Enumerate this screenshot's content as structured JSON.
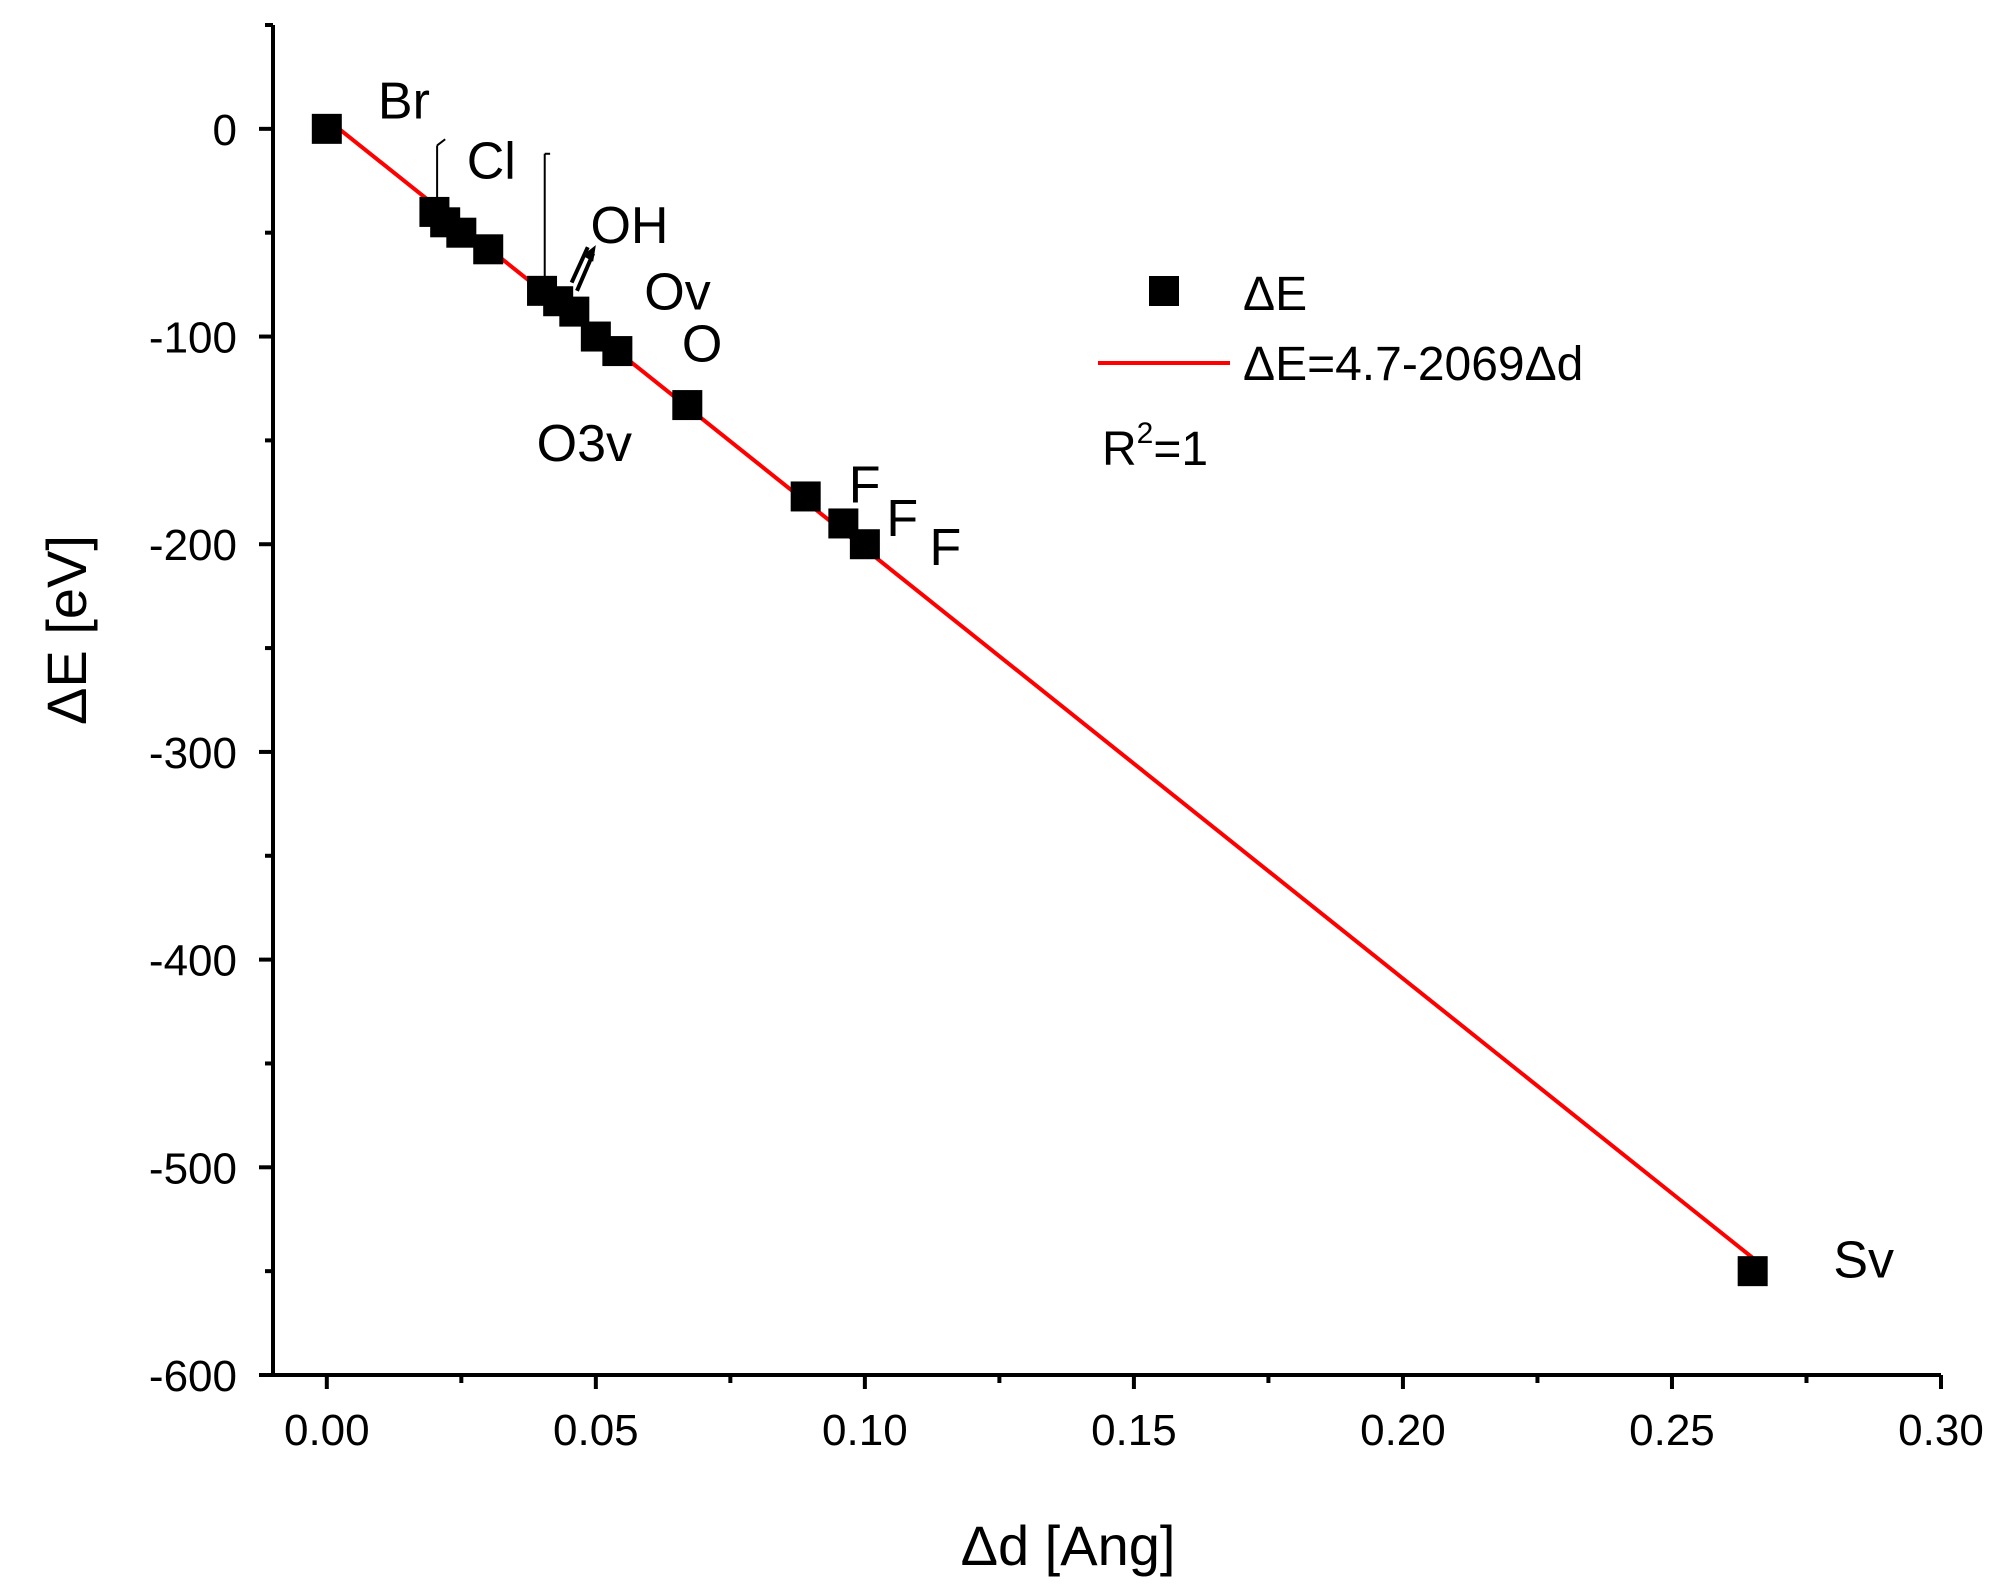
{
  "chart_data": {
    "type": "scatter",
    "xlabel": "Δd [Ang]",
    "ylabel": "ΔE [eV]",
    "xlim": [
      -0.01,
      0.3
    ],
    "ylim": [
      -600,
      50
    ],
    "x_ticks": [
      0.0,
      0.05,
      0.1,
      0.15,
      0.2,
      0.25,
      0.3
    ],
    "x_tick_labels": [
      "0.00",
      "0.05",
      "0.10",
      "0.15",
      "0.20",
      "0.25",
      "0.30"
    ],
    "y_ticks": [
      0,
      -100,
      -200,
      -300,
      -400,
      -500,
      -600
    ],
    "y_tick_labels": [
      "0",
      "-100",
      "-200",
      "-300",
      "-400",
      "-500",
      "-600"
    ],
    "series": [
      {
        "name": "ΔE",
        "marker": "square",
        "color": "#000000",
        "x": [
          0.0,
          0.02,
          0.022,
          0.025,
          0.03,
          0.04,
          0.043,
          0.046,
          0.05,
          0.054,
          0.067,
          0.089,
          0.096,
          0.1,
          0.265
        ],
        "y": [
          0,
          -40,
          -45,
          -50,
          -58,
          -78,
          -83,
          -88,
          -100,
          -107,
          -133,
          -177,
          -190,
          -200,
          -550
        ]
      }
    ],
    "fit": {
      "name": "ΔE=4.7-2069Δd",
      "color": "#ff0000",
      "intercept": 4.7,
      "slope": -2069,
      "x_range": [
        0.0,
        0.265
      ]
    },
    "legend": {
      "position": "top-right",
      "entries": [
        "ΔE",
        "ΔE=4.7-2069Δd"
      ],
      "r2_prefix": "R",
      "r2_sup": "2",
      "r2_suffix": "=1"
    },
    "annotations": [
      {
        "text": "Br",
        "x": 0.0095,
        "y": 5
      },
      {
        "text": "Cl",
        "x": 0.026,
        "y": -24
      },
      {
        "text": "OH",
        "x": 0.049,
        "y": -55
      },
      {
        "text": "Ov",
        "x": 0.059,
        "y": -87
      },
      {
        "text": "O",
        "x": 0.066,
        "y": -112
      },
      {
        "text": "O3v",
        "x": 0.039,
        "y": -160
      },
      {
        "text": "F",
        "x": 0.097,
        "y": -180
      },
      {
        "text": "F",
        "x": 0.104,
        "y": -196
      },
      {
        "text": "F",
        "x": 0.112,
        "y": -210
      },
      {
        "text": "Sv",
        "x": 0.28,
        "y": -553
      }
    ]
  }
}
